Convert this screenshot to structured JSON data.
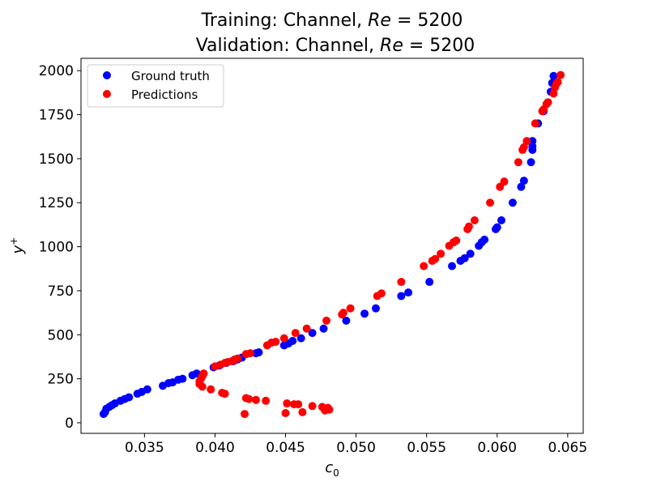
{
  "chart_data": {
    "type": "scatter",
    "title_lines": [
      {
        "prefix": "Training: Channel, ",
        "italic": "Re",
        "suffix": " = 5200"
      },
      {
        "prefix": "Validation: Channel, ",
        "italic": "Re",
        "suffix": " = 5200"
      }
    ],
    "xlabel_main": "c",
    "xlabel_sub": "0",
    "ylabel_main": "y",
    "ylabel_sup": "+",
    "xlim": [
      0.0305,
      0.0661
    ],
    "ylim": [
      -60,
      2070
    ],
    "xticks": [
      0.035,
      0.04,
      0.045,
      0.05,
      0.055,
      0.06,
      0.065
    ],
    "xtick_labels": [
      "0.035",
      "0.040",
      "0.045",
      "0.050",
      "0.055",
      "0.060",
      "0.065"
    ],
    "yticks": [
      0,
      250,
      500,
      750,
      1000,
      1250,
      1500,
      1750,
      2000
    ],
    "ytick_labels": [
      "0",
      "250",
      "500",
      "750",
      "1000",
      "1250",
      "1500",
      "1750",
      "2000"
    ],
    "grid": false,
    "legend_position": "top-left",
    "series": [
      {
        "name": "Ground truth",
        "color": "#0000ff",
        "points": [
          [
            0.0321,
            50
          ],
          [
            0.0322,
            60
          ],
          [
            0.0323,
            80
          ],
          [
            0.0325,
            90
          ],
          [
            0.0327,
            100
          ],
          [
            0.0329,
            110
          ],
          [
            0.0333,
            125
          ],
          [
            0.0336,
            135
          ],
          [
            0.0339,
            145
          ],
          [
            0.0345,
            165
          ],
          [
            0.0348,
            175
          ],
          [
            0.0352,
            190
          ],
          [
            0.0363,
            210
          ],
          [
            0.0367,
            225
          ],
          [
            0.037,
            230
          ],
          [
            0.0374,
            245
          ],
          [
            0.0377,
            250
          ],
          [
            0.0384,
            270
          ],
          [
            0.0387,
            280
          ],
          [
            0.0399,
            315
          ],
          [
            0.0403,
            325
          ],
          [
            0.0408,
            340
          ],
          [
            0.0413,
            350
          ],
          [
            0.0416,
            360
          ],
          [
            0.0419,
            370
          ],
          [
            0.0429,
            395
          ],
          [
            0.0431,
            400
          ],
          [
            0.0449,
            440
          ],
          [
            0.0452,
            450
          ],
          [
            0.0455,
            465
          ],
          [
            0.0461,
            480
          ],
          [
            0.0469,
            510
          ],
          [
            0.0477,
            535
          ],
          [
            0.0493,
            580
          ],
          [
            0.0506,
            620
          ],
          [
            0.0514,
            650
          ],
          [
            0.0532,
            720
          ],
          [
            0.0537,
            740
          ],
          [
            0.0552,
            800
          ],
          [
            0.0568,
            890
          ],
          [
            0.0574,
            920
          ],
          [
            0.0577,
            935
          ],
          [
            0.0581,
            960
          ],
          [
            0.0587,
            1005
          ],
          [
            0.0589,
            1025
          ],
          [
            0.0591,
            1040
          ],
          [
            0.0599,
            1100
          ],
          [
            0.06,
            1110
          ],
          [
            0.0603,
            1150
          ],
          [
            0.0611,
            1250
          ],
          [
            0.0617,
            1340
          ],
          [
            0.0619,
            1375
          ],
          [
            0.0624,
            1480
          ],
          [
            0.0625,
            1550
          ],
          [
            0.0625,
            1570
          ],
          [
            0.0625,
            1600
          ],
          [
            0.0629,
            1700
          ],
          [
            0.0633,
            1770
          ],
          [
            0.0636,
            1820
          ],
          [
            0.0638,
            1880
          ],
          [
            0.0639,
            1930
          ],
          [
            0.064,
            1970
          ]
        ]
      },
      {
        "name": "Predictions",
        "color": "#ff0000",
        "points": [
          [
            0.0392,
            280
          ],
          [
            0.0391,
            265
          ],
          [
            0.039,
            250
          ],
          [
            0.0389,
            235
          ],
          [
            0.0389,
            220
          ],
          [
            0.0391,
            205
          ],
          [
            0.0397,
            190
          ],
          [
            0.0405,
            170
          ],
          [
            0.0407,
            165
          ],
          [
            0.0422,
            140
          ],
          [
            0.0424,
            135
          ],
          [
            0.0429,
            130
          ],
          [
            0.0436,
            125
          ],
          [
            0.0451,
            110
          ],
          [
            0.0456,
            105
          ],
          [
            0.0459,
            105
          ],
          [
            0.0469,
            95
          ],
          [
            0.0476,
            90
          ],
          [
            0.0478,
            70
          ],
          [
            0.0479,
            80
          ],
          [
            0.0481,
            75
          ],
          [
            0.048,
            85
          ],
          [
            0.0421,
            50
          ],
          [
            0.045,
            55
          ],
          [
            0.0462,
            60
          ],
          [
            0.04,
            320
          ],
          [
            0.0404,
            330
          ],
          [
            0.0407,
            340
          ],
          [
            0.0409,
            345
          ],
          [
            0.0412,
            350
          ],
          [
            0.0414,
            360
          ],
          [
            0.0416,
            365
          ],
          [
            0.0422,
            390
          ],
          [
            0.0425,
            395
          ],
          [
            0.0437,
            440
          ],
          [
            0.044,
            455
          ],
          [
            0.0443,
            460
          ],
          [
            0.0449,
            480
          ],
          [
            0.0457,
            510
          ],
          [
            0.0465,
            535
          ],
          [
            0.0479,
            580
          ],
          [
            0.049,
            615
          ],
          [
            0.0491,
            625
          ],
          [
            0.0496,
            650
          ],
          [
            0.0515,
            720
          ],
          [
            0.0518,
            735
          ],
          [
            0.0532,
            800
          ],
          [
            0.0548,
            890
          ],
          [
            0.0554,
            920
          ],
          [
            0.0556,
            930
          ],
          [
            0.056,
            960
          ],
          [
            0.0566,
            1005
          ],
          [
            0.0569,
            1025
          ],
          [
            0.0571,
            1035
          ],
          [
            0.0579,
            1100
          ],
          [
            0.058,
            1115
          ],
          [
            0.0584,
            1150
          ],
          [
            0.0595,
            1250
          ],
          [
            0.0602,
            1340
          ],
          [
            0.0605,
            1370
          ],
          [
            0.0615,
            1480
          ],
          [
            0.0618,
            1550
          ],
          [
            0.0619,
            1565
          ],
          [
            0.0621,
            1600
          ],
          [
            0.0627,
            1700
          ],
          [
            0.0632,
            1770
          ],
          [
            0.0633,
            1780
          ],
          [
            0.0635,
            1810
          ],
          [
            0.0636,
            1820
          ],
          [
            0.064,
            1870
          ],
          [
            0.0641,
            1905
          ],
          [
            0.0642,
            1925
          ],
          [
            0.0643,
            1935
          ],
          [
            0.0645,
            1975
          ]
        ]
      }
    ]
  }
}
